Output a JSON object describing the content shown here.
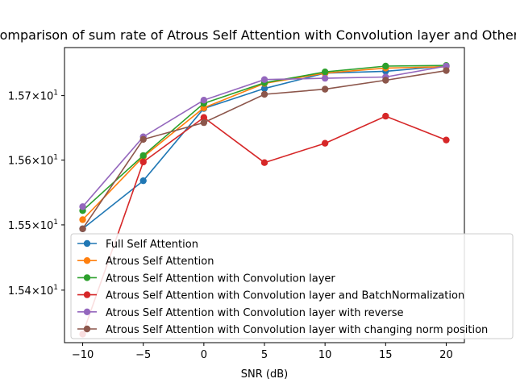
{
  "chart_data": {
    "type": "line",
    "title": "Comparison of sum rate of Atrous Self Attention with Convolution layer and Others",
    "xlabel": "SNR (dB)",
    "ylabel": "",
    "y_scale": "log",
    "x": [
      -10,
      -5,
      0,
      5,
      10,
      15,
      20
    ],
    "x_ticks": [
      -10,
      -5,
      0,
      5,
      10,
      15,
      20
    ],
    "x_tick_labels": [
      "−10",
      "−5",
      "0",
      "5",
      "10",
      "15",
      "20"
    ],
    "xlim": [
      -11.5,
      21.5
    ],
    "ylim": [
      15.32,
      15.775
    ],
    "y_ticks": [
      15.4,
      15.5,
      15.6,
      15.7
    ],
    "y_tick_labels": [
      {
        "mantissa": "1.54",
        "base": "×10",
        "exp": "1"
      },
      {
        "mantissa": "1.55",
        "base": "×10",
        "exp": "1"
      },
      {
        "mantissa": "1.56",
        "base": "×10",
        "exp": "1"
      },
      {
        "mantissa": "1.57",
        "base": "×10",
        "exp": "1"
      }
    ],
    "grid": false,
    "legend_position": "lower-right",
    "series": [
      {
        "name": "Full Self Attention",
        "color": "#1f77b4",
        "values": [
          15.494,
          15.568,
          15.68,
          15.711,
          15.735,
          15.738,
          15.746
        ]
      },
      {
        "name": "Atrous Self Attention",
        "color": "#ff7f0e",
        "values": [
          15.508,
          15.605,
          15.681,
          15.719,
          15.735,
          15.743,
          15.745
        ]
      },
      {
        "name": "Atrous Self Attention with Convolution layer",
        "color": "#2ca02c",
        "values": [
          15.522,
          15.607,
          15.688,
          15.72,
          15.737,
          15.746,
          15.747
        ]
      },
      {
        "name": "Atrous Self Attention with Convolution layer and BatchNormalization",
        "color": "#d62728",
        "values": [
          15.333,
          15.597,
          15.666,
          15.596,
          15.626,
          15.668,
          15.631
        ]
      },
      {
        "name": "Atrous Self Attention with Convolution layer with reverse",
        "color": "#9467bd",
        "values": [
          15.528,
          15.636,
          15.693,
          15.725,
          15.727,
          15.729,
          15.746
        ]
      },
      {
        "name": "Atrous Self Attention with Convolution layer with changing norm position",
        "color": "#8c564b",
        "values": [
          15.494,
          15.632,
          15.658,
          15.702,
          15.71,
          15.724,
          15.739
        ]
      }
    ]
  }
}
